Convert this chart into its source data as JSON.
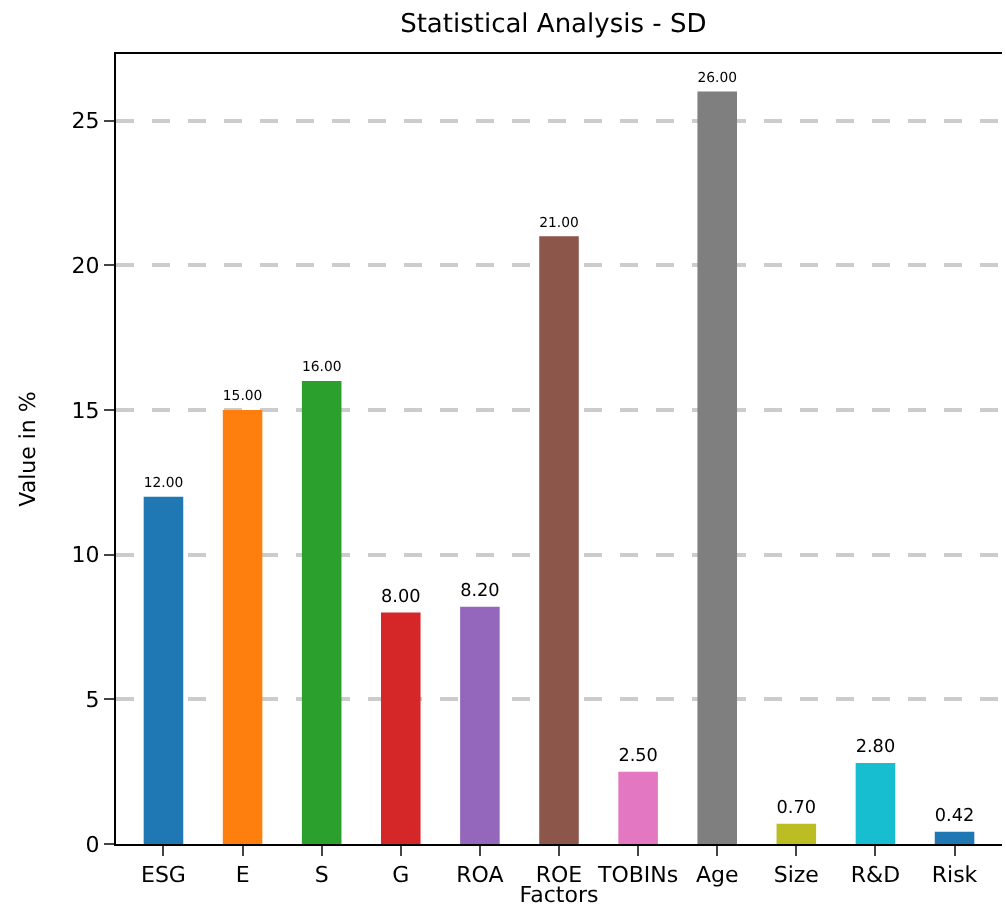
{
  "chart_data": {
    "type": "bar",
    "title": "Statistical Analysis - SD",
    "xlabel": "Factors",
    "ylabel": "Value in %",
    "categories": [
      "ESG",
      "E",
      "S",
      "G",
      "ROA",
      "ROE",
      "TOBINs",
      "Age",
      "Size",
      "R&D",
      "Risk"
    ],
    "values": [
      12,
      15,
      16,
      8,
      8.2,
      21,
      2.5,
      26,
      0.7,
      2.8,
      0.42
    ],
    "value_labels": [
      "12.00",
      "15.00",
      "16.00",
      "8.00",
      "8.20",
      "21.00",
      "2.50",
      "26.00",
      "0.70",
      "2.80",
      "0.42"
    ],
    "colors": [
      "#1f77b4",
      "#ff7f0e",
      "#2ca02c",
      "#d62728",
      "#9467bd",
      "#8c564b",
      "#e377c2",
      "#7f7f7f",
      "#bcbd22",
      "#17becf",
      "#1f77b4"
    ],
    "ylim": [
      0,
      27.3
    ],
    "yticks": [
      0,
      5,
      10,
      15,
      20,
      25
    ],
    "grid": "y",
    "legend": false
  }
}
